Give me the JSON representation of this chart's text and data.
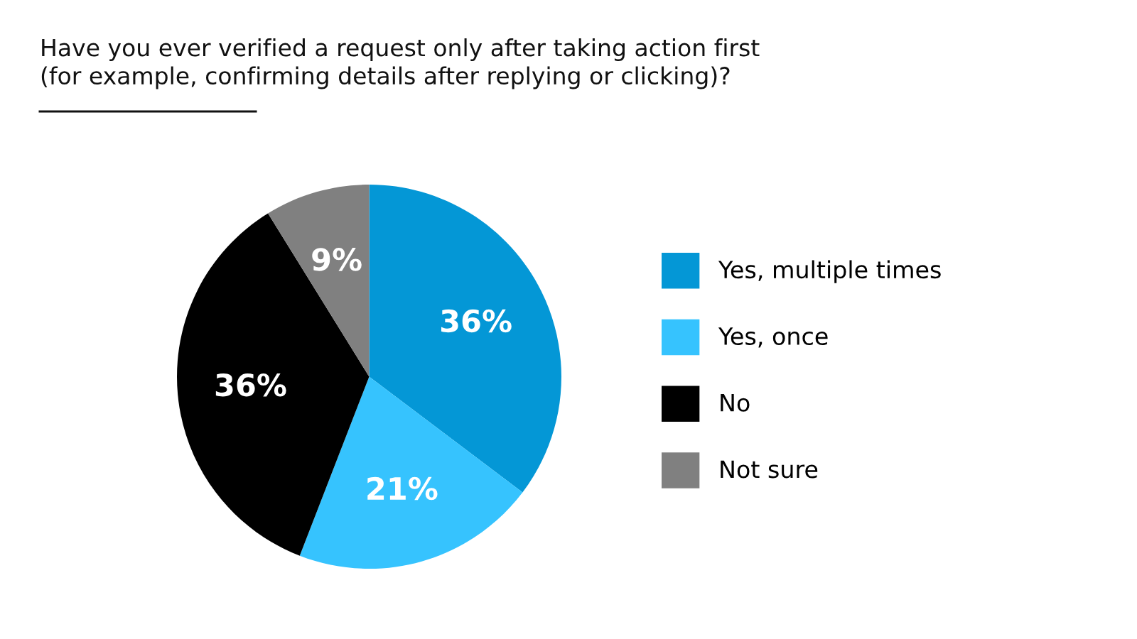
{
  "chart_data": {
    "type": "pie",
    "title": "Have you ever verified a request only after taking action first\n(for example, confirming details after replying or clicking)?",
    "categories": [
      "Yes, multiple times",
      "Yes, once",
      "No",
      "Not sure"
    ],
    "values": [
      36,
      21,
      36,
      9
    ],
    "colors": [
      "#0497d6",
      "#36c3fe",
      "#000000",
      "#808080"
    ],
    "value_labels": [
      "36%",
      "21%",
      "36%",
      "9%"
    ],
    "legend": "right"
  }
}
